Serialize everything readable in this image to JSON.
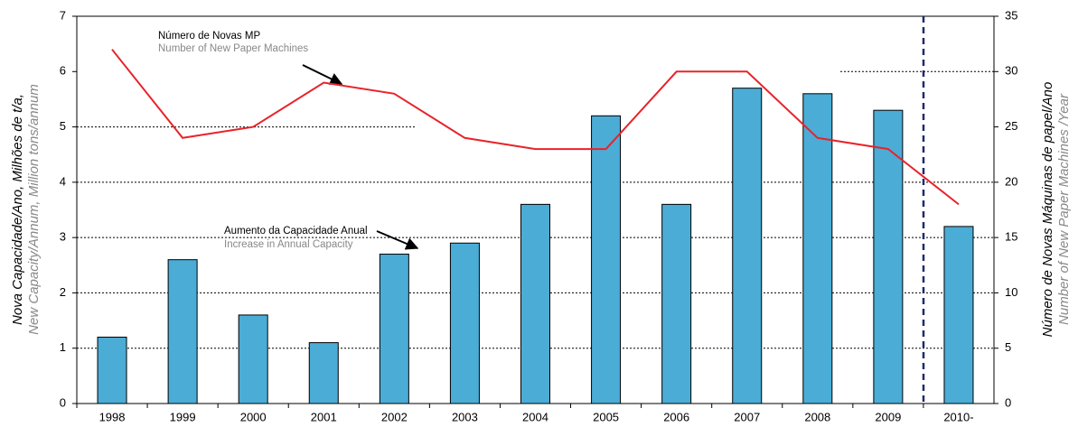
{
  "chart_data": {
    "type": "bar_line",
    "categories": [
      "1998",
      "1999",
      "2000",
      "2001",
      "2002",
      "2003",
      "2004",
      "2005",
      "2006",
      "2007",
      "2008",
      "2009",
      "2010-"
    ],
    "series": [
      {
        "name": "Aumento da Capacidade Anual",
        "color": "#4bacd6",
        "values": [
          1.2,
          2.6,
          1.6,
          1.1,
          2.7,
          2.9,
          3.6,
          5.2,
          3.6,
          5.7,
          5.6,
          5.3,
          3.2
        ]
      },
      {
        "name": "Número de Novas MP",
        "color": "#e8232a",
        "axis": "y2",
        "values": [
          32,
          24,
          25,
          29,
          28,
          24,
          23,
          23,
          30,
          30,
          24,
          23,
          18
        ]
      }
    ],
    "annotations": [
      {
        "text": "Número de Novas MP",
        "subtext": "Number of New Paper Machines"
      },
      {
        "text": "Aumento da Capacidade Anual",
        "subtext": "Increase in Annual Capacity"
      }
    ],
    "ylabel": "Nova Capacidade/Ano, Milhões de t/a,",
    "ylabel_en": "New Capacity/Annum, Million tons/annum",
    "y2label": "Número de Novas Máquinas de  papel/Ano",
    "y2label_en": "Number of New Paper Machines /Year",
    "ylim": [
      0,
      7
    ],
    "yticks": [
      0,
      1,
      2,
      3,
      4,
      5,
      6,
      7
    ],
    "y2lim": [
      0,
      35
    ],
    "y2ticks": [
      0,
      5,
      10,
      15,
      20,
      25,
      30,
      35
    ],
    "grid": true
  }
}
